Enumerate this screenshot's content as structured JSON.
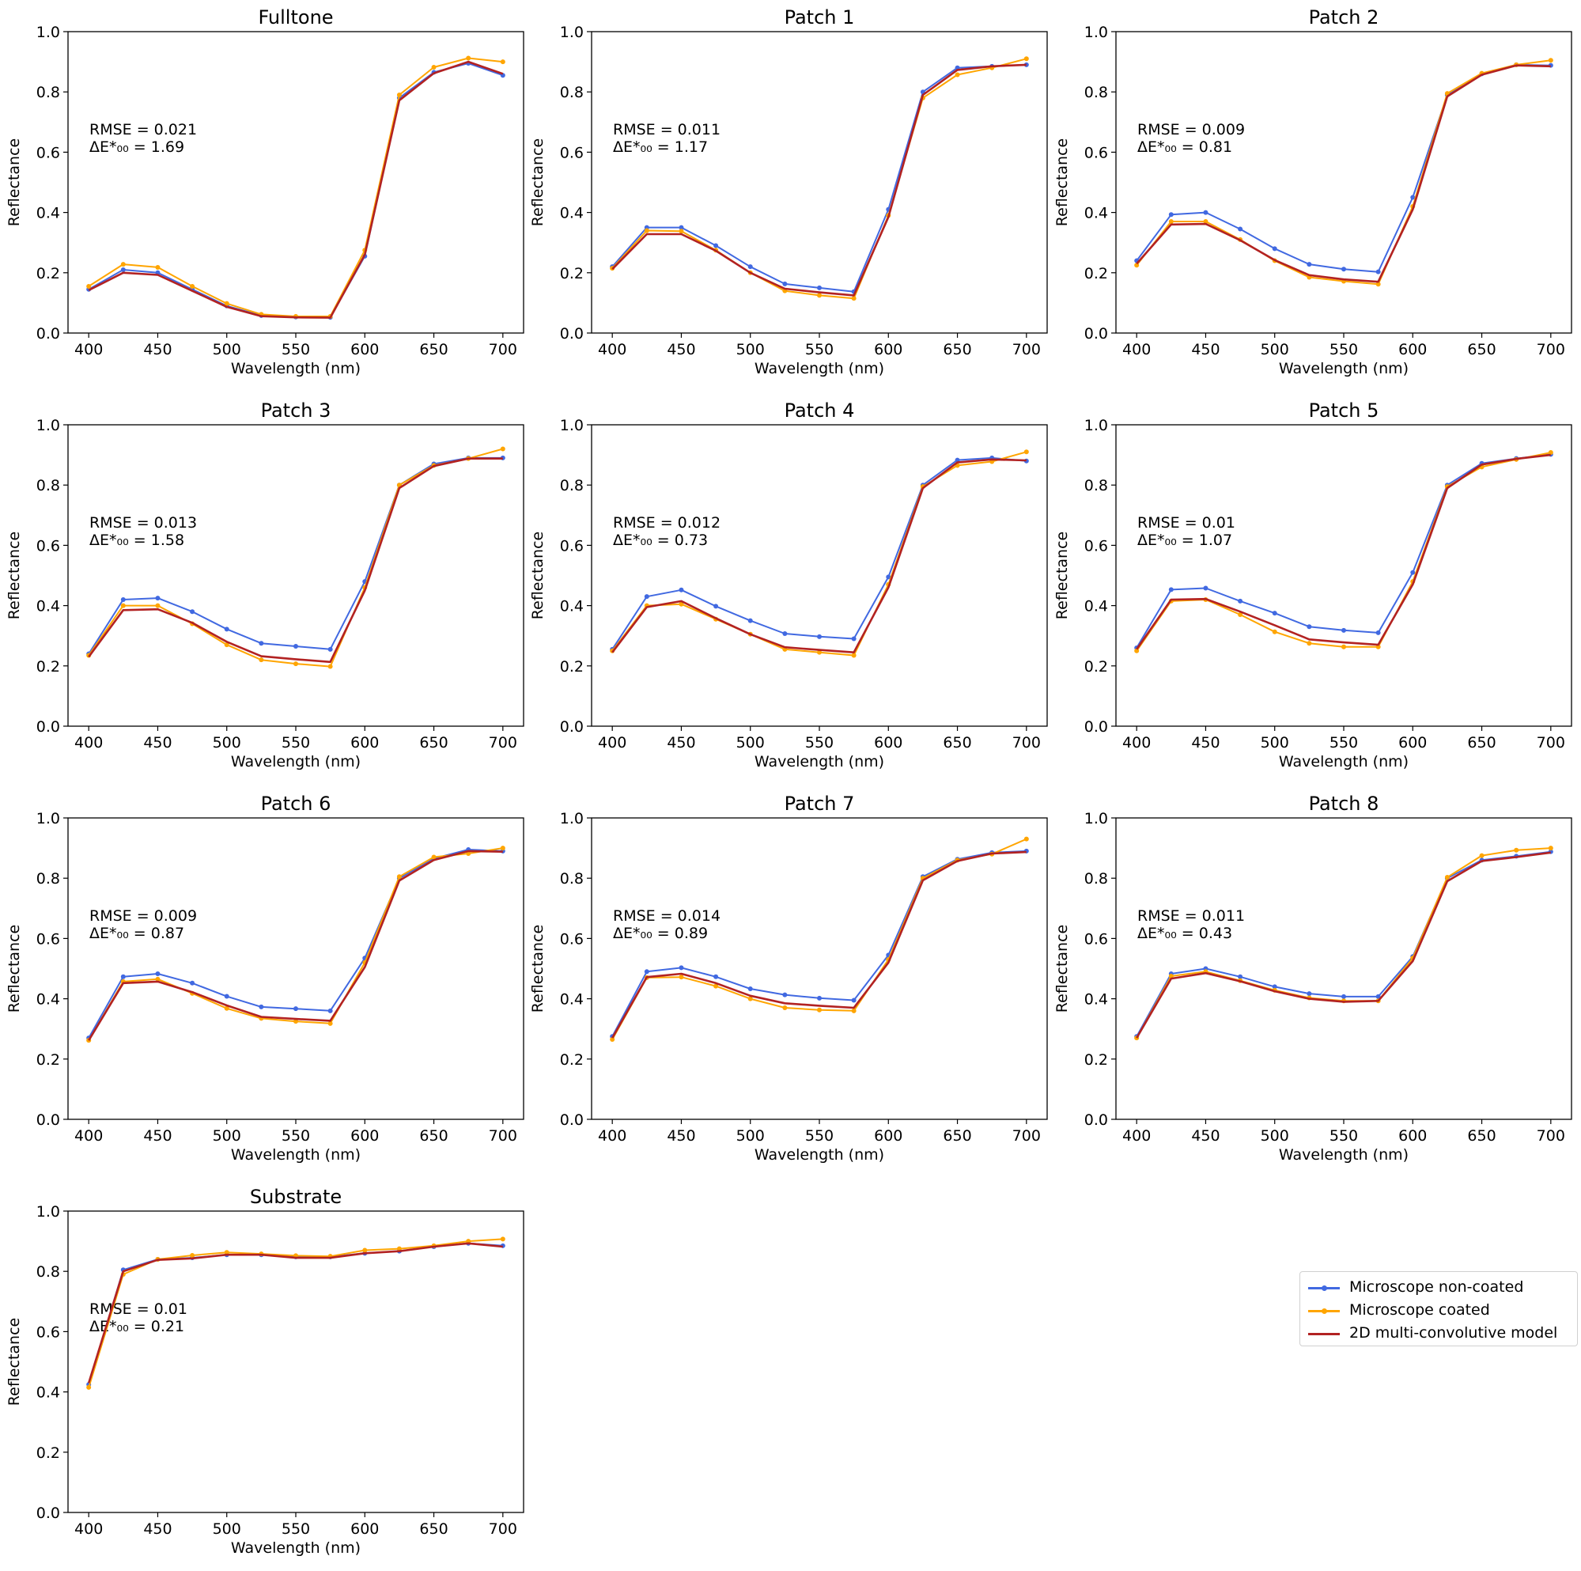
{
  "chart_data": [
    {
      "type": "line",
      "title": "Fulltone",
      "xlabel": "Wavelength (nm)",
      "ylabel": "Reflectance",
      "xlim": [
        400,
        700
      ],
      "ylim": [
        0.0,
        1.0
      ],
      "x": [
        400,
        425,
        450,
        475,
        500,
        525,
        550,
        575,
        600,
        625,
        650,
        675,
        700
      ],
      "xticks": [
        "400",
        "450",
        "500",
        "550",
        "600",
        "650",
        "700"
      ],
      "yticks": [
        "0.0",
        "0.2",
        "0.4",
        "0.6",
        "0.8",
        "1.0"
      ],
      "rmse": "RMSE = 0.021",
      "delta_e": "ΔE*₀₀ = 1.69",
      "series": [
        {
          "name": "Microscope non-coated",
          "values": [
            0.145,
            0.21,
            0.2,
            0.145,
            0.09,
            0.058,
            0.053,
            0.052,
            0.255,
            0.78,
            0.865,
            0.895,
            0.855
          ]
        },
        {
          "name": "Microscope coated",
          "values": [
            0.155,
            0.228,
            0.218,
            0.155,
            0.098,
            0.062,
            0.055,
            0.055,
            0.275,
            0.79,
            0.882,
            0.912,
            0.9
          ]
        },
        {
          "name": "2D multi-convolutive model",
          "values": [
            0.142,
            0.2,
            0.193,
            0.14,
            0.087,
            0.056,
            0.052,
            0.051,
            0.26,
            0.772,
            0.862,
            0.9,
            0.86
          ]
        }
      ]
    },
    {
      "type": "line",
      "title": "Patch 1",
      "xlabel": "Wavelength (nm)",
      "ylabel": "Reflectance",
      "xlim": [
        400,
        700
      ],
      "ylim": [
        0.0,
        1.0
      ],
      "x": [
        400,
        425,
        450,
        475,
        500,
        525,
        550,
        575,
        600,
        625,
        650,
        675,
        700
      ],
      "xticks": [
        "400",
        "450",
        "500",
        "550",
        "600",
        "650",
        "700"
      ],
      "yticks": [
        "0.0",
        "0.2",
        "0.4",
        "0.6",
        "0.8",
        "1.0"
      ],
      "rmse": "RMSE = 0.011",
      "delta_e": "ΔE*₀₀ = 1.17",
      "series": [
        {
          "name": "Microscope non-coated",
          "values": [
            0.22,
            0.35,
            0.35,
            0.29,
            0.22,
            0.163,
            0.15,
            0.137,
            0.41,
            0.8,
            0.88,
            0.885,
            0.89
          ]
        },
        {
          "name": "Microscope coated",
          "values": [
            0.215,
            0.34,
            0.338,
            0.275,
            0.2,
            0.14,
            0.125,
            0.115,
            0.39,
            0.78,
            0.857,
            0.88,
            0.91
          ]
        },
        {
          "name": "2D multi-convolutive model",
          "values": [
            0.212,
            0.328,
            0.328,
            0.273,
            0.2,
            0.147,
            0.135,
            0.125,
            0.385,
            0.79,
            0.873,
            0.885,
            0.89
          ]
        }
      ]
    },
    {
      "type": "line",
      "title": "Patch 2",
      "xlabel": "Wavelength (nm)",
      "ylabel": "Reflectance",
      "xlim": [
        400,
        700
      ],
      "ylim": [
        0.0,
        1.0
      ],
      "x": [
        400,
        425,
        450,
        475,
        500,
        525,
        550,
        575,
        600,
        625,
        650,
        675,
        700
      ],
      "xticks": [
        "400",
        "450",
        "500",
        "550",
        "600",
        "650",
        "700"
      ],
      "yticks": [
        "0.0",
        "0.2",
        "0.4",
        "0.6",
        "0.8",
        "1.0"
      ],
      "rmse": "RMSE = 0.009",
      "delta_e": "ΔE*₀₀ = 0.81",
      "series": [
        {
          "name": "Microscope non-coated",
          "values": [
            0.24,
            0.393,
            0.4,
            0.345,
            0.28,
            0.228,
            0.212,
            0.203,
            0.45,
            0.79,
            0.86,
            0.89,
            0.888
          ]
        },
        {
          "name": "Microscope coated",
          "values": [
            0.225,
            0.37,
            0.37,
            0.31,
            0.24,
            0.185,
            0.172,
            0.162,
            0.42,
            0.795,
            0.862,
            0.89,
            0.905
          ]
        },
        {
          "name": "2D multi-convolutive model",
          "values": [
            0.23,
            0.36,
            0.362,
            0.308,
            0.242,
            0.192,
            0.178,
            0.17,
            0.41,
            0.785,
            0.857,
            0.888,
            0.885
          ]
        }
      ]
    },
    {
      "type": "line",
      "title": "Patch 3",
      "xlabel": "Wavelength (nm)",
      "ylabel": "Reflectance",
      "xlim": [
        400,
        700
      ],
      "ylim": [
        0.0,
        1.0
      ],
      "x": [
        400,
        425,
        450,
        475,
        500,
        525,
        550,
        575,
        600,
        625,
        650,
        675,
        700
      ],
      "xticks": [
        "400",
        "450",
        "500",
        "550",
        "600",
        "650",
        "700"
      ],
      "yticks": [
        "0.0",
        "0.2",
        "0.4",
        "0.6",
        "0.8",
        "1.0"
      ],
      "rmse": "RMSE = 0.013",
      "delta_e": "ΔE*₀₀ = 1.58",
      "series": [
        {
          "name": "Microscope non-coated",
          "values": [
            0.24,
            0.42,
            0.425,
            0.38,
            0.322,
            0.275,
            0.265,
            0.255,
            0.48,
            0.8,
            0.87,
            0.89,
            0.89
          ]
        },
        {
          "name": "Microscope coated",
          "values": [
            0.235,
            0.4,
            0.4,
            0.34,
            0.27,
            0.22,
            0.207,
            0.198,
            0.46,
            0.8,
            0.865,
            0.888,
            0.92
          ]
        },
        {
          "name": "2D multi-convolutive model",
          "values": [
            0.23,
            0.385,
            0.388,
            0.343,
            0.28,
            0.232,
            0.222,
            0.213,
            0.45,
            0.79,
            0.863,
            0.888,
            0.888
          ]
        }
      ]
    },
    {
      "type": "line",
      "title": "Patch 4",
      "xlabel": "Wavelength (nm)",
      "ylabel": "Reflectance",
      "xlim": [
        400,
        700
      ],
      "ylim": [
        0.0,
        1.0
      ],
      "x": [
        400,
        425,
        450,
        475,
        500,
        525,
        550,
        575,
        600,
        625,
        650,
        675,
        700
      ],
      "xticks": [
        "400",
        "450",
        "500",
        "550",
        "600",
        "650",
        "700"
      ],
      "yticks": [
        "0.0",
        "0.2",
        "0.4",
        "0.6",
        "0.8",
        "1.0"
      ],
      "rmse": "RMSE = 0.012",
      "delta_e": "ΔE*₀₀ = 0.73",
      "series": [
        {
          "name": "Microscope non-coated",
          "values": [
            0.255,
            0.43,
            0.452,
            0.398,
            0.35,
            0.307,
            0.297,
            0.29,
            0.495,
            0.8,
            0.883,
            0.89,
            0.88
          ]
        },
        {
          "name": "Microscope coated",
          "values": [
            0.25,
            0.4,
            0.405,
            0.355,
            0.305,
            0.255,
            0.245,
            0.235,
            0.47,
            0.795,
            0.865,
            0.878,
            0.91
          ]
        },
        {
          "name": "2D multi-convolutive model",
          "values": [
            0.245,
            0.395,
            0.415,
            0.358,
            0.305,
            0.262,
            0.253,
            0.245,
            0.46,
            0.79,
            0.875,
            0.885,
            0.882
          ]
        }
      ]
    },
    {
      "type": "line",
      "title": "Patch 5",
      "xlabel": "Wavelength (nm)",
      "ylabel": "Reflectance",
      "xlim": [
        400,
        700
      ],
      "ylim": [
        0.0,
        1.0
      ],
      "x": [
        400,
        425,
        450,
        475,
        500,
        525,
        550,
        575,
        600,
        625,
        650,
        675,
        700
      ],
      "xticks": [
        "400",
        "450",
        "500",
        "550",
        "600",
        "650",
        "700"
      ],
      "yticks": [
        "0.0",
        "0.2",
        "0.4",
        "0.6",
        "0.8",
        "1.0"
      ],
      "rmse": "RMSE = 0.01",
      "delta_e": "ΔE*₀₀ = 1.07",
      "series": [
        {
          "name": "Microscope non-coated",
          "values": [
            0.26,
            0.453,
            0.458,
            0.415,
            0.375,
            0.33,
            0.318,
            0.31,
            0.51,
            0.8,
            0.872,
            0.888,
            0.902
          ]
        },
        {
          "name": "Microscope coated",
          "values": [
            0.25,
            0.415,
            0.42,
            0.37,
            0.313,
            0.275,
            0.263,
            0.263,
            0.48,
            0.795,
            0.86,
            0.885,
            0.908
          ]
        },
        {
          "name": "2D multi-convolutive model",
          "values": [
            0.255,
            0.42,
            0.422,
            0.38,
            0.335,
            0.288,
            0.278,
            0.27,
            0.47,
            0.79,
            0.868,
            0.887,
            0.9
          ]
        }
      ]
    },
    {
      "type": "line",
      "title": "Patch 6",
      "xlabel": "Wavelength (nm)",
      "ylabel": "Reflectance",
      "xlim": [
        400,
        700
      ],
      "ylim": [
        0.0,
        1.0
      ],
      "x": [
        400,
        425,
        450,
        475,
        500,
        525,
        550,
        575,
        600,
        625,
        650,
        675,
        700
      ],
      "xticks": [
        "400",
        "450",
        "500",
        "550",
        "600",
        "650",
        "700"
      ],
      "yticks": [
        "0.0",
        "0.2",
        "0.4",
        "0.6",
        "0.8",
        "1.0"
      ],
      "rmse": "RMSE = 0.009",
      "delta_e": "ΔE*₀₀ = 0.87",
      "series": [
        {
          "name": "Microscope non-coated",
          "values": [
            0.27,
            0.473,
            0.483,
            0.452,
            0.408,
            0.373,
            0.367,
            0.36,
            0.535,
            0.8,
            0.865,
            0.895,
            0.89
          ]
        },
        {
          "name": "Microscope coated",
          "values": [
            0.262,
            0.457,
            0.465,
            0.418,
            0.368,
            0.335,
            0.325,
            0.318,
            0.52,
            0.805,
            0.87,
            0.882,
            0.9
          ]
        },
        {
          "name": "2D multi-convolutive model",
          "values": [
            0.262,
            0.452,
            0.457,
            0.422,
            0.378,
            0.34,
            0.333,
            0.327,
            0.505,
            0.792,
            0.86,
            0.89,
            0.888
          ]
        }
      ]
    },
    {
      "type": "line",
      "title": "Patch 7",
      "xlabel": "Wavelength (nm)",
      "ylabel": "Reflectance",
      "xlim": [
        400,
        700
      ],
      "ylim": [
        0.0,
        1.0
      ],
      "x": [
        400,
        425,
        450,
        475,
        500,
        525,
        550,
        575,
        600,
        625,
        650,
        675,
        700
      ],
      "xticks": [
        "400",
        "450",
        "500",
        "550",
        "600",
        "650",
        "700"
      ],
      "yticks": [
        "0.0",
        "0.2",
        "0.4",
        "0.6",
        "0.8",
        "1.0"
      ],
      "rmse": "RMSE = 0.014",
      "delta_e": "ΔE*₀₀ = 0.89",
      "series": [
        {
          "name": "Microscope non-coated",
          "values": [
            0.275,
            0.49,
            0.503,
            0.473,
            0.433,
            0.413,
            0.402,
            0.395,
            0.545,
            0.805,
            0.863,
            0.885,
            0.89
          ]
        },
        {
          "name": "Microscope coated",
          "values": [
            0.265,
            0.47,
            0.472,
            0.442,
            0.4,
            0.37,
            0.363,
            0.36,
            0.53,
            0.8,
            0.86,
            0.88,
            0.93
          ]
        },
        {
          "name": "2D multi-convolutive model",
          "values": [
            0.27,
            0.472,
            0.483,
            0.452,
            0.41,
            0.385,
            0.377,
            0.37,
            0.52,
            0.793,
            0.857,
            0.882,
            0.887
          ]
        }
      ]
    },
    {
      "type": "line",
      "title": "Patch 8",
      "xlabel": "Wavelength (nm)",
      "ylabel": "Reflectance",
      "xlim": [
        400,
        700
      ],
      "ylim": [
        0.0,
        1.0
      ],
      "x": [
        400,
        425,
        450,
        475,
        500,
        525,
        550,
        575,
        600,
        625,
        650,
        675,
        700
      ],
      "xticks": [
        "400",
        "450",
        "500",
        "550",
        "600",
        "650",
        "700"
      ],
      "yticks": [
        "0.0",
        "0.2",
        "0.4",
        "0.6",
        "0.8",
        "1.0"
      ],
      "rmse": "RMSE = 0.011",
      "delta_e": "ΔE*₀₀ = 0.43",
      "series": [
        {
          "name": "Microscope non-coated",
          "values": [
            0.275,
            0.483,
            0.5,
            0.473,
            0.44,
            0.417,
            0.407,
            0.407,
            0.54,
            0.8,
            0.86,
            0.873,
            0.888
          ]
        },
        {
          "name": "Microscope coated",
          "values": [
            0.27,
            0.475,
            0.49,
            0.46,
            0.428,
            0.403,
            0.393,
            0.393,
            0.535,
            0.803,
            0.875,
            0.893,
            0.9
          ]
        },
        {
          "name": "2D multi-convolutive model",
          "values": [
            0.27,
            0.467,
            0.485,
            0.458,
            0.425,
            0.4,
            0.39,
            0.393,
            0.525,
            0.79,
            0.857,
            0.87,
            0.885
          ]
        }
      ]
    },
    {
      "type": "line",
      "title": "Substrate",
      "xlabel": "Wavelength (nm)",
      "ylabel": "Reflectance",
      "xlim": [
        400,
        700
      ],
      "ylim": [
        0.0,
        1.0
      ],
      "x": [
        400,
        425,
        450,
        475,
        500,
        525,
        550,
        575,
        600,
        625,
        650,
        675,
        700
      ],
      "xticks": [
        "400",
        "450",
        "500",
        "550",
        "600",
        "650",
        "700"
      ],
      "yticks": [
        "0.0",
        "0.2",
        "0.4",
        "0.6",
        "0.8",
        "1.0"
      ],
      "rmse": "RMSE = 0.01",
      "delta_e": "ΔE*₀₀ = 0.21",
      "series": [
        {
          "name": "Microscope non-coated",
          "values": [
            0.425,
            0.805,
            0.84,
            0.845,
            0.855,
            0.855,
            0.848,
            0.848,
            0.86,
            0.867,
            0.882,
            0.893,
            0.885
          ]
        },
        {
          "name": "Microscope coated",
          "values": [
            0.415,
            0.79,
            0.84,
            0.853,
            0.863,
            0.858,
            0.852,
            0.85,
            0.87,
            0.875,
            0.885,
            0.9,
            0.907
          ]
        },
        {
          "name": "2D multi-convolutive model",
          "values": [
            0.43,
            0.8,
            0.838,
            0.843,
            0.855,
            0.855,
            0.845,
            0.845,
            0.86,
            0.867,
            0.882,
            0.893,
            0.882
          ]
        }
      ]
    }
  ],
  "legend": {
    "position": "right of Substrate plot",
    "entries": [
      {
        "label": "Microscope non-coated",
        "color": "#4169e1",
        "marker": "dot"
      },
      {
        "label": "Microscope coated",
        "color": "#ffa500",
        "marker": "dot"
      },
      {
        "label": "2D multi-convolutive model",
        "color": "#b22222",
        "marker": "none"
      }
    ]
  }
}
